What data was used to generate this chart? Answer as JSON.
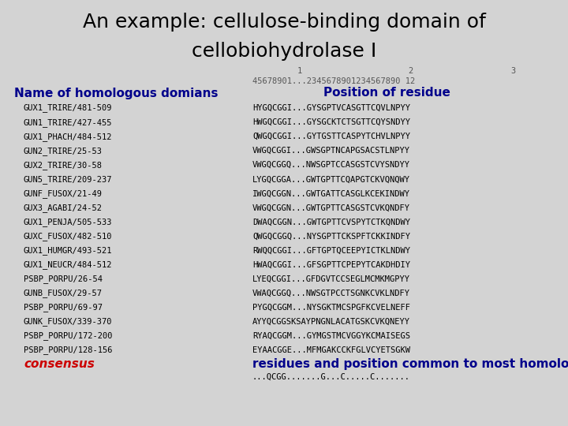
{
  "title_line1": "An example: cellulose-binding domain of",
  "title_line2": "cellobiohydrolase I",
  "background_color": "#d3d3d3",
  "title_fontsize": 18,
  "title_color": "#000000",
  "left_header": "Name of homologous domians",
  "right_header": "Position of residue",
  "header_fontsize": 11,
  "left_header_color": "#00008b",
  "right_header_color": "#00008b",
  "ruler_line1": "         1              2         3",
  "ruler_line2": "45678901...2345678901234567890 12",
  "ruler_color": "#555555",
  "ruler_fontsize": 7.5,
  "names": [
    "GUX1_TRIRE/481-509",
    "GUN1_TRIRE/427-455",
    "GUX1_PHACH/484-512",
    "GUN2_TRIRE/25-53",
    "GUX2_TRIRE/30-58",
    "GUN5_TRIRE/209-237",
    "GUNF_FUSOX/21-49",
    "GUX3_AGABI/24-52",
    "GUX1_PENJA/505-533",
    "GUXC_FUSOX/482-510",
    "GUX1_HUMGR/493-521",
    "GUX1_NEUCR/484-512",
    "PSBP_PORPU/26-54",
    "GUNB_FUSOX/29-57",
    "PSBP_PORPU/69-97",
    "GUNK_FUSOX/339-370",
    "PSBP_PORPU/172-200",
    "PSBP_PORPU/128-156"
  ],
  "sequences": [
    "HYGQCGGI...GYSGPTVCASGTTCQVLNPYY",
    "HWGQCGGI...GYSGCKTCTSGTTCQYSNDYY",
    "QWGQCGGI...GYTGSTTCASPYTCHVLNPYY",
    "VWGQCGGI...GWSGPTNCAPGSACSTLNPYY",
    "VWGQCGGQ...NWSGPTCCASGSTCVYSNDYY",
    "LYGQCGGA...GWTGPTTCQAPGTCKVQNQWY",
    "IWGQCGGN...GWTGATTCASGLKCEKINDWY",
    "VWGQCGGN...GWTGPTTCASGSTCVKQNDFY",
    "DWAQCGGN...GWTGPTTCVSPYTCTKQNDWY",
    "QWGQCGGQ...NYSGPTTCKSPFTCKKINDFY",
    "RWQQCGGI...GFTGPTQCEEPYICTKLNDWY",
    "HWAQCGGI...GFSGPTTCPEPYTCAKDHDIY",
    "LYEQCGGI...GFDGVTCCSEGLMCMKMGPYY",
    "VWAQCGGQ...NWSGTPCCTSGNKCVKLNDFY",
    "PYGQCGGM...NYSGKTMCSPGFKCVELNEFF",
    "AYYQCGGSKSAYPNGNLACATGSKCVKQNEYY",
    "RYAQCGGM...GYMGSTMCVGGYKCMAISEGS",
    "EYAACGGE...MFMGAKCCKFGLVCYETSGKW"
  ],
  "seq_fontsize": 7.5,
  "name_fontsize": 7.5,
  "name_color": "#000000",
  "seq_color": "#000000",
  "consensus_label": "consensus",
  "consensus_color": "#cc0000",
  "consensus_desc": "residues and position common to most homologs",
  "consensus_desc_color": "#00008b",
  "consensus_seq": "...QCGG.......G...C.....C.......",
  "consensus_seq_color": "#000000",
  "consensus_fontsize": 11,
  "consensus_desc_fontsize": 11
}
